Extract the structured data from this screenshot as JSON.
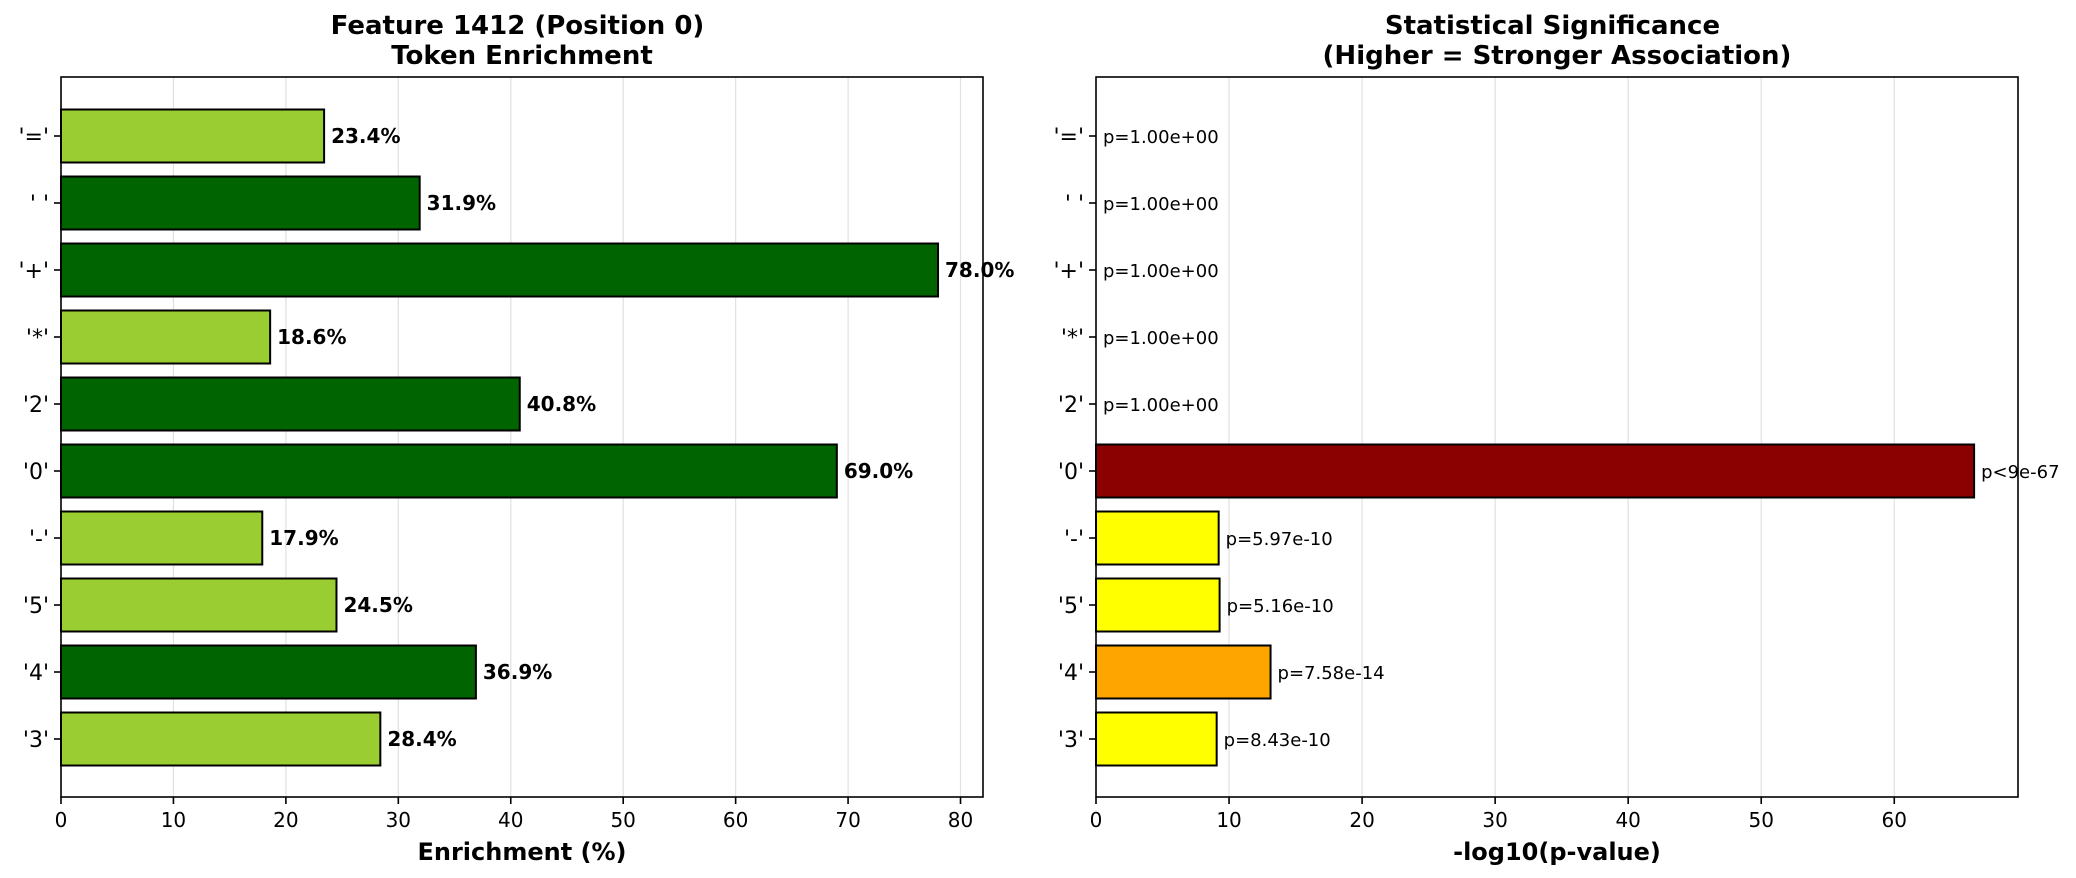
{
  "chart_data": [
    {
      "type": "bar",
      "orientation": "horizontal",
      "title": "Feature 1412 (Position 0)\nToken Enrichment",
      "xlabel": "Enrichment (%)",
      "ylabel": "",
      "xlim": [
        0,
        82
      ],
      "xticks": [
        0,
        10,
        20,
        30,
        40,
        50,
        60,
        70,
        80
      ],
      "grid": "vertical",
      "categories": [
        "'='",
        "' '",
        "'+'",
        "'*'",
        "'2'",
        "'0'",
        "'-'",
        "'5'",
        "'4'",
        "'3'"
      ],
      "values": [
        23.4,
        31.9,
        78.0,
        18.6,
        40.8,
        69.0,
        17.9,
        24.5,
        36.9,
        28.4
      ],
      "labels": [
        "23.4%",
        "31.9%",
        "78.0%",
        "18.6%",
        "40.8%",
        "69.0%",
        "17.9%",
        "24.5%",
        "36.9%",
        "28.4%"
      ],
      "colors": [
        "#9acd32",
        "#006400",
        "#006400",
        "#9acd32",
        "#006400",
        "#006400",
        "#9acd32",
        "#9acd32",
        "#006400",
        "#9acd32"
      ]
    },
    {
      "type": "bar",
      "orientation": "horizontal",
      "title": "Statistical Significance\n(Higher = Stronger Association)",
      "xlabel": "-log10(p-value)",
      "ylabel": "",
      "xlim": [
        0,
        69.3
      ],
      "xticks": [
        0,
        10,
        20,
        30,
        40,
        50,
        60
      ],
      "grid": "vertical",
      "categories": [
        "'='",
        "' '",
        "'+'",
        "'*'",
        "'2'",
        "'0'",
        "'-'",
        "'5'",
        "'4'",
        "'3'"
      ],
      "values": [
        0,
        0,
        0,
        0,
        0,
        66.0,
        9.22,
        9.29,
        13.12,
        9.07
      ],
      "labels": [
        "p=1.00e+00",
        "p=1.00e+00",
        "p=1.00e+00",
        "p=1.00e+00",
        "p=1.00e+00",
        "p<9e-67",
        "p=5.97e-10",
        "p=5.16e-10",
        "p=7.58e-14",
        "p=8.43e-10"
      ],
      "colors": [
        "#ffff00",
        "#ffff00",
        "#ffff00",
        "#ffff00",
        "#ffff00",
        "#8b0000",
        "#ffff00",
        "#ffff00",
        "#ffa500",
        "#ffff00"
      ]
    }
  ]
}
